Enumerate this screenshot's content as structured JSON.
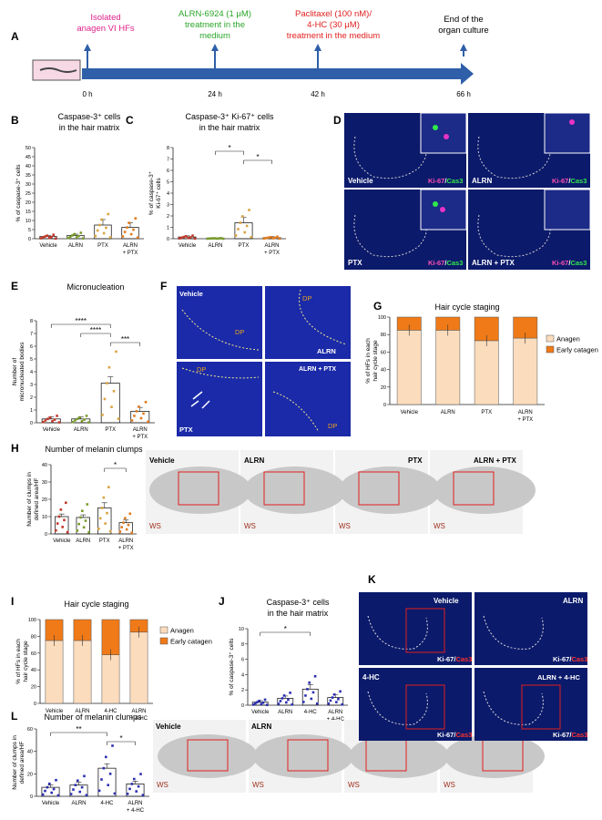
{
  "panels": {
    "A": "A",
    "B": "B",
    "C": "C",
    "D": "D",
    "E": "E",
    "F": "F",
    "G": "G",
    "H": "H",
    "I": "I",
    "J": "J",
    "K": "K",
    "L": "L"
  },
  "timeline": {
    "isolated": [
      "Isolated",
      "anagen VI HFs"
    ],
    "alrn": [
      "ALRN-6924 (1 μM)",
      "treatment in the",
      "medium"
    ],
    "ptx": [
      "Paclitaxel (100 nM)/",
      "4-HC (30 μM)",
      "treatment in the medium"
    ],
    "end": [
      "End of the",
      "organ culture"
    ],
    "times": [
      "0 h",
      "24 h",
      "42 h",
      "66 h"
    ]
  },
  "colors": {
    "isolated": "#e0218a",
    "alrn": "#2aa52a",
    "ptx": "#e21e1e",
    "arrow": "#2f5fa8",
    "anagen": "#fbdcbd",
    "catagen": "#f07a18",
    "vehicle_pt": "#c0392b",
    "alrn_pt": "#7a9b2b",
    "ptx_pt": "#d9a441",
    "combo_pt": "#e07b1e",
    "j_pt": "#2b2fb0"
  },
  "labels": {
    "vehicle": "Vehicle",
    "alrn": "ALRN",
    "ptx": "PTX",
    "alrn_plus": "ALRN",
    "plus_ptx": "+ PTX",
    "fourhc": "4-HC",
    "plus_4hc": "+ 4-HC",
    "alrn_ptx": "ALRN + PTX",
    "alrn_4hc": "ALRN + 4-HC",
    "dp": "DP",
    "ws": "WS",
    "ki67": "Ki-67",
    "cas3": "Cas3",
    "slash": "/",
    "anagen": "Anagen",
    "catagen": "Early catagen"
  },
  "stars": {
    "one": "*",
    "two": "**",
    "three": "***",
    "four": "****"
  },
  "chart_data": [
    {
      "panel": "B",
      "type": "bar",
      "title": "Caspase-3⁺ cells in the hair matrix",
      "ylabel": "% of caspase-3⁺ cells",
      "categories": [
        "Vehicle",
        "ALRN",
        "PTX",
        "ALRN + PTX"
      ],
      "values": [
        1.2,
        1.8,
        7.5,
        6.2
      ],
      "errors": [
        0.5,
        0.7,
        3.0,
        2.5
      ],
      "ylim": [
        0,
        50
      ],
      "yticks": [
        0,
        5,
        10,
        15,
        20,
        25,
        30,
        35,
        40,
        45,
        50
      ]
    },
    {
      "panel": "C",
      "type": "bar",
      "title": "Caspase-3⁺ Ki-67⁺ cells in the hair matrix",
      "ylabel": "% of caspase-3⁺ Ki-67⁺ cells",
      "categories": [
        "Vehicle",
        "ALRN",
        "PTX",
        "ALRN + PTX"
      ],
      "values": [
        0.15,
        0.03,
        1.4,
        0.1
      ],
      "errors": [
        0.1,
        0.02,
        0.5,
        0.08
      ],
      "ylim": [
        0,
        8
      ],
      "yticks": [
        0,
        1,
        2,
        3,
        4,
        5,
        6,
        7,
        8
      ],
      "significance": [
        {
          "from": "ALRN",
          "to": "PTX",
          "label": "*"
        },
        {
          "from": "PTX",
          "to": "ALRN + PTX",
          "label": "*"
        }
      ]
    },
    {
      "panel": "E",
      "type": "bar",
      "title": "Micronucleation",
      "ylabel": "Number of micronucleated bodies",
      "categories": [
        "Vehicle",
        "ALRN",
        "PTX",
        "ALRN + PTX"
      ],
      "values": [
        0.3,
        0.3,
        3.1,
        0.9
      ],
      "errors": [
        0.15,
        0.15,
        0.5,
        0.3
      ],
      "ylim": [
        0,
        8
      ],
      "yticks": [
        0,
        1,
        2,
        3,
        4,
        5,
        6,
        7,
        8
      ],
      "significance": [
        {
          "from": "Vehicle",
          "to": "PTX",
          "label": "****"
        },
        {
          "from": "ALRN",
          "to": "PTX",
          "label": "****"
        },
        {
          "from": "PTX",
          "to": "ALRN + PTX",
          "label": "***"
        }
      ]
    },
    {
      "panel": "G",
      "type": "bar",
      "stacked": true,
      "title": "Hair cycle staging",
      "ylabel": "% of HFs in each hair cycle stage",
      "categories": [
        "Vehicle",
        "ALRN",
        "PTX",
        "ALRN + PTX"
      ],
      "series": [
        {
          "name": "Anagen",
          "values": [
            85,
            85,
            73,
            76
          ]
        },
        {
          "name": "Early catagen",
          "values": [
            15,
            15,
            27,
            24
          ]
        }
      ],
      "ylim": [
        0,
        100
      ],
      "yticks": [
        0,
        20,
        40,
        60,
        80,
        100
      ]
    },
    {
      "panel": "H",
      "type": "bar",
      "title": "Number of melanin clumps",
      "ylabel": "Number of clumps in defined area/HF",
      "categories": [
        "Vehicle",
        "ALRN",
        "PTX",
        "ALRN + PTX"
      ],
      "values": [
        10,
        9.5,
        15,
        6.5
      ],
      "errors": [
        1.5,
        1.5,
        3,
        1.5
      ],
      "ylim": [
        0,
        40
      ],
      "yticks": [
        0,
        10,
        20,
        30,
        40
      ],
      "significance": [
        {
          "from": "PTX",
          "to": "ALRN + PTX",
          "label": "*"
        }
      ]
    },
    {
      "panel": "I",
      "type": "bar",
      "stacked": true,
      "title": "Hair cycle staging",
      "ylabel": "% of HFs in each hair cycle stage",
      "categories": [
        "Vehicle",
        "ALRN",
        "4-HC",
        "ALRN + 4-HC"
      ],
      "series": [
        {
          "name": "Anagen",
          "values": [
            75,
            75,
            58,
            85
          ]
        },
        {
          "name": "Early catagen",
          "values": [
            25,
            25,
            42,
            15
          ]
        }
      ],
      "ylim": [
        0,
        100
      ],
      "yticks": [
        0,
        20,
        40,
        60,
        80,
        100
      ]
    },
    {
      "panel": "J",
      "type": "bar",
      "title": "Caspase-3⁺ cells in the hair matrix",
      "ylabel": "% of caspase-3⁺ cells",
      "categories": [
        "Vehicle",
        "ALRN",
        "4-HC",
        "ALRN + 4-HC"
      ],
      "values": [
        0.4,
        0.9,
        2.1,
        1.0
      ],
      "errors": [
        0.2,
        0.3,
        0.6,
        0.4
      ],
      "ylim": [
        0,
        10
      ],
      "yticks": [
        0,
        2,
        4,
        6,
        8,
        10
      ],
      "significance": [
        {
          "from": "Vehicle",
          "to": "4-HC",
          "label": "*"
        }
      ]
    },
    {
      "panel": "L",
      "type": "bar",
      "title": "Number of melanin clumps",
      "ylabel": "Number of clumps in defined area/HF",
      "categories": [
        "Vehicle",
        "ALRN",
        "4-HC",
        "ALRN + 4-HC"
      ],
      "values": [
        8,
        10,
        25,
        11
      ],
      "errors": [
        2,
        2.5,
        4,
        2.5
      ],
      "ylim": [
        0,
        60
      ],
      "yticks": [
        0,
        20,
        40,
        60
      ],
      "significance": [
        {
          "from": "Vehicle",
          "to": "4-HC",
          "label": "**"
        },
        {
          "from": "4-HC",
          "to": "ALRN + 4-HC",
          "label": "*"
        }
      ]
    }
  ]
}
